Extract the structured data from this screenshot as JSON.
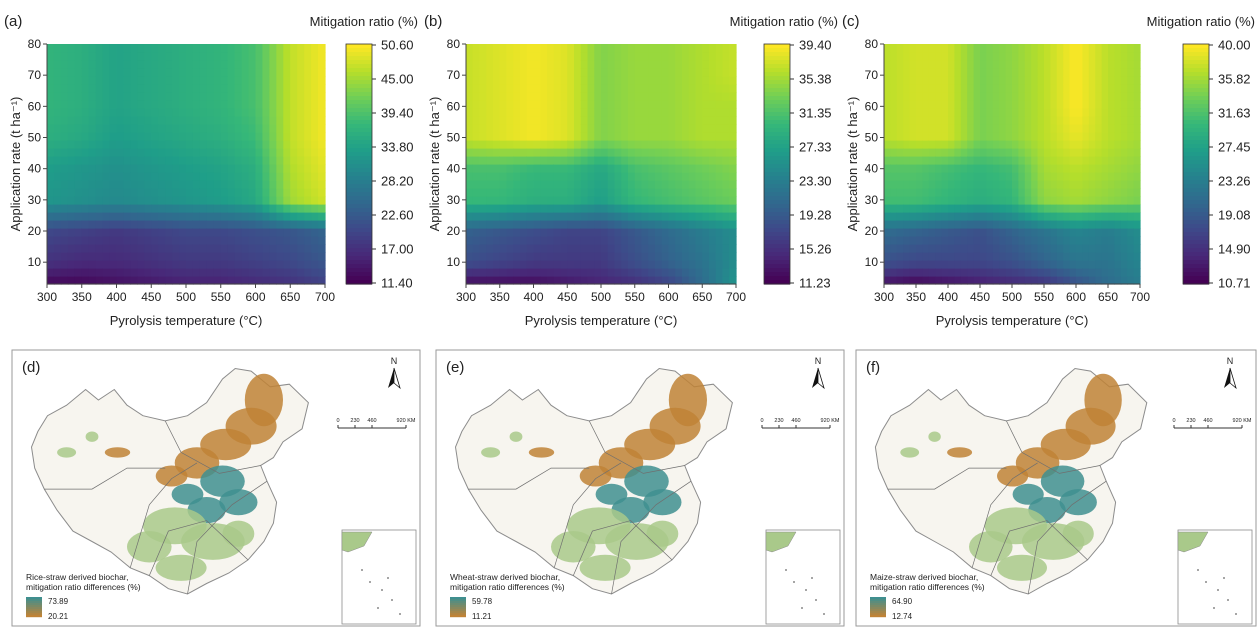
{
  "chart_data": [
    {
      "panel": "(a)",
      "type": "heatmap",
      "xlabel": "Pyrolysis temperature (°C)",
      "ylabel": "Application rate (t ha⁻¹)",
      "x_ticks": [
        300,
        350,
        400,
        450,
        500,
        550,
        600,
        650,
        700
      ],
      "y_ticks": [
        10,
        20,
        30,
        40,
        50,
        60,
        70,
        80
      ],
      "xlim": [
        300,
        700
      ],
      "ylim": [
        3,
        80
      ],
      "colorbar_title": "Mitigation ratio (%)",
      "colorbar_ticks": [
        "50.60",
        "45.00",
        "39.40",
        "33.80",
        "28.20",
        "22.60",
        "17.00",
        "11.40"
      ],
      "vmin": 11.4,
      "vmax": 50.6,
      "x": [
        300,
        350,
        400,
        450,
        500,
        550,
        600,
        650,
        700
      ],
      "y": [
        3,
        10,
        20,
        30,
        40,
        50,
        60,
        70,
        80
      ],
      "z": [
        [
          12,
          12,
          13,
          14,
          15,
          15,
          16,
          17,
          19
        ],
        [
          17,
          16,
          16,
          17,
          18,
          18,
          19,
          20,
          22
        ],
        [
          20,
          19,
          18,
          19,
          20,
          20,
          21,
          22,
          24
        ],
        [
          32,
          31,
          30,
          31,
          32,
          33,
          35,
          45,
          48
        ],
        [
          33,
          32,
          31,
          32,
          33,
          34,
          36,
          46,
          49
        ],
        [
          36,
          35,
          33,
          34,
          35,
          36,
          38,
          47,
          50
        ],
        [
          37,
          36,
          34,
          35,
          36,
          37,
          39,
          47,
          50
        ],
        [
          37,
          36,
          34,
          35,
          36,
          37,
          39,
          47,
          50
        ],
        [
          37,
          36,
          34,
          35,
          36,
          37,
          39,
          47,
          50
        ]
      ]
    },
    {
      "panel": "(b)",
      "type": "heatmap",
      "xlabel": "Pyrolysis temperature (°C)",
      "ylabel": "Application rate (t ha⁻¹)",
      "x_ticks": [
        300,
        350,
        400,
        450,
        500,
        550,
        600,
        650,
        700
      ],
      "y_ticks": [
        10,
        20,
        30,
        40,
        50,
        60,
        70,
        80
      ],
      "xlim": [
        300,
        700
      ],
      "ylim": [
        3,
        80
      ],
      "colorbar_title": "Mitigation ratio (%)",
      "colorbar_ticks": [
        "39.40",
        "35.38",
        "31.35",
        "27.33",
        "23.30",
        "19.28",
        "15.26",
        "11.23"
      ],
      "vmin": 11.23,
      "vmax": 39.4,
      "x": [
        300,
        350,
        400,
        450,
        500,
        550,
        600,
        650,
        700
      ],
      "y": [
        3,
        10,
        20,
        30,
        40,
        50,
        60,
        70,
        80
      ],
      "z": [
        [
          12,
          12,
          12,
          13,
          14,
          15,
          17,
          21,
          26
        ],
        [
          18,
          17,
          16,
          16,
          16,
          18,
          20,
          22,
          25
        ],
        [
          20,
          19,
          18,
          17,
          17,
          19,
          21,
          23,
          25
        ],
        [
          30,
          30,
          29,
          29,
          27,
          30,
          31,
          32,
          33
        ],
        [
          31,
          31,
          30,
          30,
          28,
          31,
          32,
          33,
          34
        ],
        [
          37,
          38,
          39,
          38,
          34,
          35,
          35,
          36,
          36
        ],
        [
          37,
          38,
          39,
          38,
          34,
          35,
          35,
          36,
          36
        ],
        [
          37,
          38,
          39,
          38,
          34,
          35,
          35,
          36,
          37
        ],
        [
          37,
          38,
          39,
          38,
          34,
          35,
          35,
          36,
          37
        ]
      ]
    },
    {
      "panel": "(c)",
      "type": "heatmap",
      "xlabel": "Pyrolysis temperature (°C)",
      "ylabel": "Application rate (t ha⁻¹)",
      "x_ticks": [
        300,
        350,
        400,
        450,
        500,
        550,
        600,
        650,
        700
      ],
      "y_ticks": [
        10,
        20,
        30,
        40,
        50,
        60,
        70,
        80
      ],
      "xlim": [
        300,
        700
      ],
      "ylim": [
        3,
        80
      ],
      "colorbar_title": "Mitigation ratio (%)",
      "colorbar_ticks": [
        "40.00",
        "35.82",
        "31.63",
        "27.45",
        "23.26",
        "19.08",
        "14.90",
        "10.71"
      ],
      "vmin": 10.71,
      "vmax": 40.0,
      "x": [
        300,
        350,
        400,
        450,
        500,
        550,
        600,
        650,
        700
      ],
      "y": [
        3,
        10,
        20,
        30,
        40,
        50,
        60,
        70,
        80
      ],
      "z": [
        [
          12,
          11,
          12,
          13,
          14,
          15,
          18,
          21,
          23
        ],
        [
          18,
          17,
          17,
          17,
          18,
          20,
          22,
          22,
          24
        ],
        [
          21,
          20,
          19,
          18,
          20,
          22,
          24,
          23,
          25
        ],
        [
          31,
          31,
          30,
          29,
          30,
          35,
          36,
          35,
          34
        ],
        [
          32,
          32,
          31,
          30,
          31,
          36,
          37,
          36,
          35
        ],
        [
          37,
          38,
          38,
          34,
          35,
          37,
          39,
          37,
          36
        ],
        [
          37,
          38,
          38,
          34,
          35,
          37,
          40,
          37,
          36
        ],
        [
          37,
          38,
          38,
          34,
          35,
          37,
          40,
          37,
          36
        ],
        [
          37,
          38,
          38,
          34,
          35,
          37,
          40,
          37,
          36
        ]
      ]
    }
  ],
  "maps": [
    {
      "panel": "(d)",
      "legend_title_1": "Rice-straw derived biochar,",
      "legend_title_2": "mitigation ratio differences (%)",
      "legend_max": "73.89",
      "legend_min": "20.21",
      "north": "N",
      "scale_labels": [
        "0",
        "230",
        "460",
        "920 KM"
      ]
    },
    {
      "panel": "(e)",
      "legend_title_1": "Wheat-straw derived biochar,",
      "legend_title_2": "mitigation ratio differences (%)",
      "legend_max": "59.78",
      "legend_min": "11.21",
      "north": "N",
      "scale_labels": [
        "0",
        "230",
        "460",
        "920 KM"
      ]
    },
    {
      "panel": "(f)",
      "legend_title_1": "Maize-straw derived biochar,",
      "legend_title_2": "mitigation ratio differences (%)",
      "legend_max": "64.90",
      "legend_min": "12.74",
      "north": "N",
      "scale_labels": [
        "0",
        "230",
        "460",
        "920 KM"
      ]
    }
  ],
  "colors": {
    "viridis": [
      "#440154",
      "#482878",
      "#3e4989",
      "#31688e",
      "#26828e",
      "#1f9e89",
      "#35b779",
      "#6ece58",
      "#b5de2b",
      "#fde725"
    ],
    "map_high": "#3f8f8f",
    "map_mid": "#a9c98a",
    "map_low": "#c08336"
  }
}
